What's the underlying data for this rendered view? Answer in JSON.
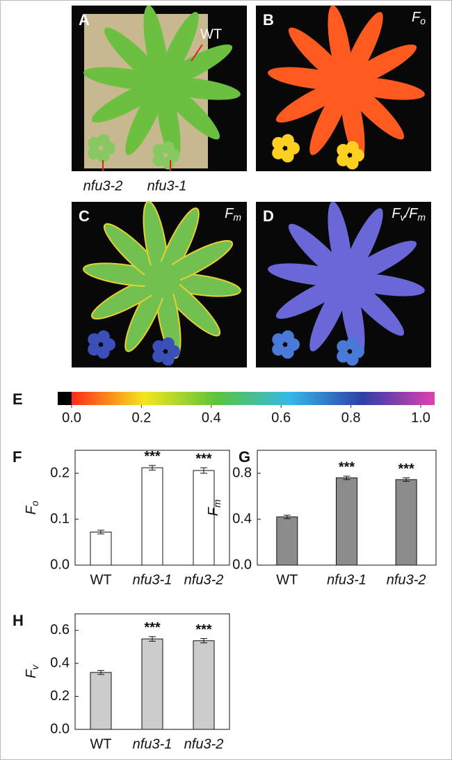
{
  "images": [
    {
      "label": "A",
      "title": null,
      "annotations": [
        "WT",
        "nfu3-2",
        "nfu3-1"
      ]
    },
    {
      "label": "B",
      "title": [
        "F",
        "o"
      ],
      "annotations": []
    },
    {
      "label": "C",
      "title": [
        "F",
        "m"
      ],
      "annotations": []
    },
    {
      "label": "D",
      "title": [
        "F",
        "v",
        "/F",
        "m"
      ],
      "annotations": []
    }
  ],
  "colorbar": {
    "label": "E",
    "range": [
      0,
      1
    ],
    "colors": [
      "#000000",
      "#ff2a1a",
      "#f5e61e",
      "#5ac43c",
      "#36b8e8",
      "#2d40a8",
      "#e040b0"
    ],
    "ticks": [
      {
        "value": 0,
        "label": "0.0"
      },
      {
        "value": 0.2,
        "label": "0.2"
      },
      {
        "value": 0.4,
        "label": "0.4"
      },
      {
        "value": 0.6,
        "label": "0.6"
      },
      {
        "value": 0.8,
        "label": "0.8"
      },
      {
        "value": 1,
        "label": "1.0"
      }
    ]
  },
  "chart_data": [
    {
      "type": "bar",
      "label": "F",
      "ylabel": [
        "F",
        "o"
      ],
      "categories": [
        "WT",
        "nfu3-1",
        "nfu3-2"
      ],
      "values": [
        0.072,
        0.212,
        0.206
      ],
      "errors": [
        0.004,
        0.005,
        0.006
      ],
      "annotations": [
        null,
        "***",
        "***"
      ],
      "color": "#ffffff",
      "ylim": [
        0,
        0.25
      ],
      "yticks": [
        {
          "value": 0,
          "label": "0.0"
        },
        {
          "value": 0.1,
          "label": "0.1"
        },
        {
          "value": 0.2,
          "label": "0.2"
        }
      ]
    },
    {
      "type": "bar",
      "label": "G",
      "ylabel": [
        "F",
        "m"
      ],
      "categories": [
        "WT",
        "nfu3-1",
        "nfu3-2"
      ],
      "values": [
        0.42,
        0.76,
        0.745
      ],
      "errors": [
        0.015,
        0.015,
        0.015
      ],
      "annotations": [
        null,
        "***",
        "***"
      ],
      "color": "#8c8c8c",
      "ylim": [
        0,
        1.0
      ],
      "yticks": [
        {
          "value": 0,
          "label": "0.0"
        },
        {
          "value": 0.4,
          "label": "0.4"
        },
        {
          "value": 0.8,
          "label": "0.8"
        }
      ]
    },
    {
      "type": "bar",
      "label": "H",
      "ylabel": [
        "F",
        "v"
      ],
      "categories": [
        "WT",
        "nfu3-1",
        "nfu3-2"
      ],
      "values": [
        0.345,
        0.548,
        0.537
      ],
      "errors": [
        0.012,
        0.014,
        0.013
      ],
      "annotations": [
        null,
        "***",
        "***"
      ],
      "color": "#cccccc",
      "ylim": [
        0,
        0.7
      ],
      "yticks": [
        {
          "value": 0,
          "label": "0.0"
        },
        {
          "value": 0.2,
          "label": "0.2"
        },
        {
          "value": 0.4,
          "label": "0.4"
        },
        {
          "value": 0.6,
          "label": "0.6"
        }
      ]
    }
  ]
}
